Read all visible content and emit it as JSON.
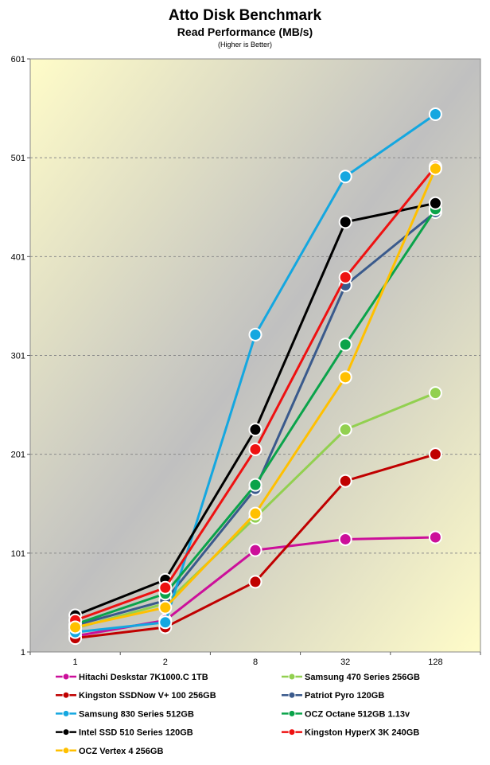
{
  "chart_data": {
    "type": "line",
    "title": "Atto Disk Benchmark",
    "subtitle": "Read Performance (MB/s)",
    "note": "(Higher is Better)",
    "xlabel": "",
    "ylabel": "",
    "categories": [
      "1",
      "2",
      "8",
      "32",
      "128"
    ],
    "ylim": [
      1,
      601
    ],
    "yticks": [
      1,
      101,
      201,
      301,
      401,
      501,
      601
    ],
    "grid": true,
    "legend_position": "bottom",
    "series": [
      {
        "name": "Hitachi Deskstar 7K1000.C 1TB",
        "color": "#cc0f9a",
        "values": [
          17,
          33,
          104,
          115,
          117
        ]
      },
      {
        "name": "Samsung 470 Series 256GB",
        "color": "#92d050",
        "values": [
          25,
          50,
          137,
          226,
          263
        ]
      },
      {
        "name": "Kingston SSDNow V+ 100 256GB",
        "color": "#c00000",
        "values": [
          15,
          26,
          72,
          174,
          201
        ]
      },
      {
        "name": "Patriot Pyro 120GB",
        "color": "#3a5a8c",
        "values": [
          28,
          53,
          166,
          372,
          446
        ]
      },
      {
        "name": "Samsung 830 Series 512GB",
        "color": "#14a7e0",
        "values": [
          21,
          31,
          322,
          482,
          545
        ]
      },
      {
        "name": "OCZ Octane 512GB 1.13v",
        "color": "#0aa34a",
        "values": [
          29,
          60,
          170,
          312,
          449
        ]
      },
      {
        "name": "Intel SSD 510 Series 120GB",
        "color": "#000000",
        "values": [
          38,
          74,
          226,
          436,
          455
        ]
      },
      {
        "name": "Kingston HyperX 3K 240GB",
        "color": "#ee1111",
        "values": [
          33,
          66,
          206,
          380,
          492
        ]
      },
      {
        "name": "OCZ Vertex 4 256GB",
        "color": "#ffc000",
        "values": [
          26,
          46,
          141,
          279,
          490
        ]
      }
    ]
  }
}
